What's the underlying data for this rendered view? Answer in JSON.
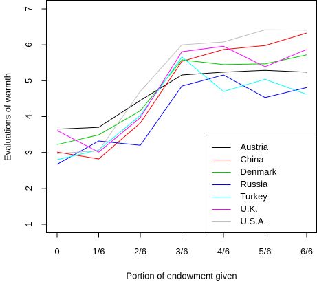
{
  "chart_data": {
    "type": "line",
    "x_label": "Portion of endowment given",
    "y_label": "Evaluations of warmth",
    "categories": [
      "0",
      "1/6",
      "2/6",
      "3/6",
      "4/6",
      "5/6",
      "6/6"
    ],
    "series": [
      {
        "name": "Austria",
        "color": "#000000",
        "values": [
          3.65,
          3.7,
          4.45,
          5.16,
          5.24,
          5.29,
          5.24
        ]
      },
      {
        "name": "China",
        "color": "#ff0000",
        "values": [
          3.01,
          2.82,
          3.82,
          5.54,
          5.87,
          5.98,
          6.33
        ]
      },
      {
        "name": "Denmark",
        "color": "#00cd00",
        "values": [
          3.22,
          3.49,
          4.16,
          5.58,
          5.45,
          5.47,
          5.72
        ]
      },
      {
        "name": "Russia",
        "color": "#0000ff",
        "values": [
          2.67,
          3.32,
          3.2,
          4.85,
          5.16,
          4.53,
          4.81
        ]
      },
      {
        "name": "Turkey",
        "color": "#00ffff",
        "values": [
          2.8,
          3.07,
          4.03,
          5.66,
          4.7,
          5.04,
          4.62
        ]
      },
      {
        "name": "U.K.",
        "color": "#ff00ff",
        "values": [
          3.61,
          3.01,
          3.97,
          5.81,
          5.96,
          5.39,
          5.87
        ]
      },
      {
        "name": "U.S.A.",
        "color": "#bebebe",
        "values": [
          2.97,
          3.05,
          4.7,
          6.0,
          6.08,
          6.42,
          6.41
        ]
      }
    ],
    "ylim": [
      0.76,
      7.24
    ],
    "yticks": [
      1,
      2,
      3,
      4,
      5,
      6,
      7
    ],
    "legend": "bottomright"
  }
}
